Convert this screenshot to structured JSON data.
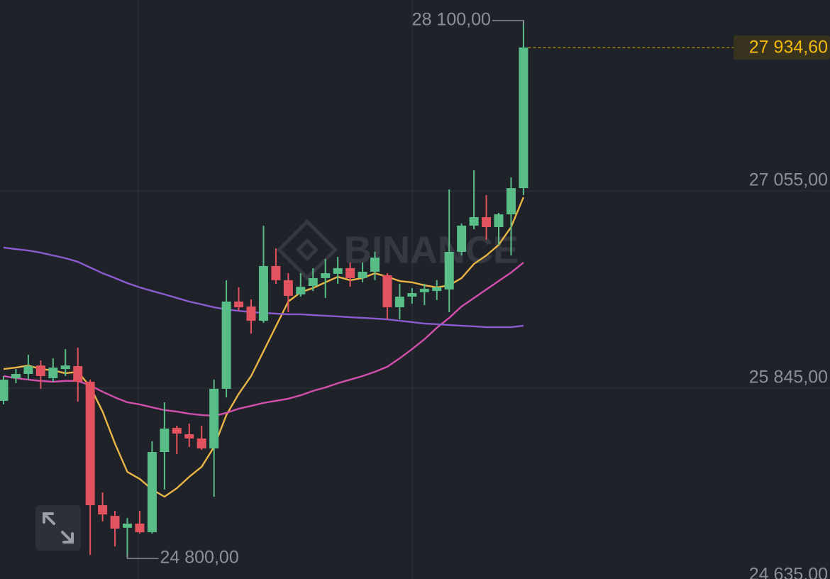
{
  "chart_data": {
    "type": "candlestick",
    "watermark": "BINANCE",
    "ylim": [
      24674,
      28226
    ],
    "yticks": [
      {
        "value": 27055,
        "label": "27 055,00"
      },
      {
        "value": 25845,
        "label": "25 845,00"
      },
      {
        "value": 24635,
        "label": "24 635,00"
      }
    ],
    "grid": true,
    "up_color": "#58bd86",
    "down_color": "#e3525f",
    "open": [
      25767,
      25906,
      25932,
      25984,
      25906,
      25962,
      25980,
      25884,
      25127,
      25061,
      24988,
      25014,
      24961,
      25453,
      25601,
      25562,
      25536,
      25475,
      25841,
      26376,
      26346,
      26258,
      26594,
      26507,
      26420,
      26472,
      26520,
      26546,
      26581,
      26520,
      26559,
      26537,
      26341,
      26406,
      26433,
      26441,
      26450,
      26681,
      26842,
      26894,
      26833,
      26911,
      27072
    ],
    "high": [
      25919,
      25962,
      26050,
      26015,
      26028,
      26084,
      26093,
      25897,
      25205,
      25092,
      25048,
      25092,
      25519,
      25758,
      25614,
      25627,
      25614,
      25897,
      26507,
      26463,
      26389,
      26842,
      26702,
      26550,
      26550,
      26581,
      26637,
      26650,
      26615,
      26615,
      26681,
      26550,
      26485,
      26459,
      26485,
      26507,
      27064,
      26855,
      27181,
      27029,
      26920,
      27138,
      28100
    ],
    "low": [
      25745,
      25875,
      25897,
      25841,
      25884,
      25919,
      25762,
      24822,
      25027,
      24874,
      24800,
      24953,
      24953,
      25223,
      25440,
      25484,
      25466,
      25179,
      25788,
      26319,
      26180,
      26245,
      26485,
      26311,
      26406,
      26441,
      26398,
      26485,
      26467,
      26494,
      26507,
      26267,
      26267,
      26363,
      26354,
      26385,
      26311,
      26659,
      26820,
      26755,
      26724,
      26659,
      27029
    ],
    "close": [
      25897,
      25932,
      25980,
      25919,
      25971,
      25984,
      25884,
      25127,
      25070,
      24983,
      25014,
      24961,
      25453,
      25597,
      25566,
      25536,
      25475,
      25841,
      26376,
      26341,
      26258,
      26594,
      26507,
      26411,
      26467,
      26520,
      26550,
      26581,
      26520,
      26559,
      26646,
      26341,
      26406,
      26428,
      26454,
      26463,
      26681,
      26842,
      26894,
      26833,
      26911,
      27072,
      27934.6
    ],
    "lines": [
      {
        "color": "#e9b546",
        "values": [
          25962,
          25971,
          25984,
          25962,
          25954,
          25936,
          25945,
          25854,
          25701,
          25505,
          25331,
          25288,
          25223,
          25179,
          25231,
          25301,
          25362,
          25484,
          25680,
          25810,
          25919,
          26071,
          26224,
          26376,
          26433,
          26459,
          26494,
          26528,
          26507,
          26520,
          26550,
          26528,
          26502,
          26494,
          26476,
          26463,
          26476,
          26520,
          26607,
          26659,
          26724,
          26833,
          27016
        ]
      },
      {
        "color": "#d24fae",
        "values": [
          25919,
          25906,
          25897,
          25889,
          25884,
          25889,
          25889,
          25862,
          25823,
          25788,
          25758,
          25745,
          25727,
          25710,
          25701,
          25688,
          25680,
          25675,
          25693,
          25719,
          25736,
          25754,
          25767,
          25780,
          25801,
          25828,
          25849,
          25875,
          25897,
          25919,
          25945,
          25976,
          26028,
          26084,
          26145,
          26215,
          26276,
          26346,
          26398,
          26450,
          26502,
          26554,
          26615
        ]
      },
      {
        "color": "#8b5cd0",
        "values": [
          26707,
          26698,
          26689,
          26676,
          26659,
          26642,
          26620,
          26585,
          26550,
          26520,
          26489,
          26463,
          26441,
          26420,
          26398,
          26376,
          26359,
          26341,
          26328,
          26319,
          26311,
          26306,
          26302,
          26298,
          26298,
          26293,
          26289,
          26285,
          26280,
          26276,
          26272,
          26267,
          26258,
          26250,
          26241,
          26237,
          26232,
          26228,
          26224,
          26219,
          26219,
          26219,
          26228
        ]
      }
    ],
    "high_marker": {
      "value": 28100,
      "label": "28 100,00"
    },
    "low_marker": {
      "value": 24800,
      "label": "24 800,00"
    },
    "last_price": {
      "value": 27934.6,
      "label": "27 934,60",
      "color": "#f0b90b"
    }
  }
}
